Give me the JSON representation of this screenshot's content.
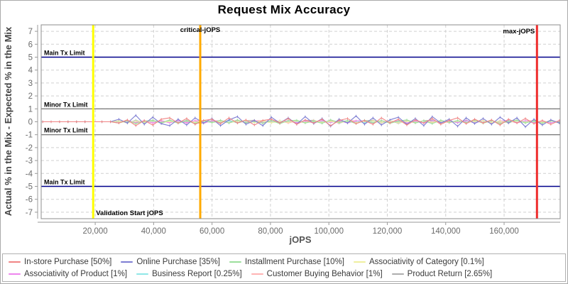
{
  "title": "Request Mix Accuracy",
  "chart_data": {
    "type": "line",
    "title": "Request Mix Accuracy",
    "xlabel": "jOPS",
    "ylabel": "Actual % in the Mix - Expected % in the Mix",
    "xlim": [
      1500,
      179200
    ],
    "ylim": [
      -7.5,
      7.5
    ],
    "x_ticks": [
      20000,
      40000,
      60000,
      80000,
      100000,
      120000,
      140000,
      160000
    ],
    "y_ticks": [
      -7,
      -6,
      -5,
      -4,
      -3,
      -2,
      -1,
      0,
      1,
      2,
      3,
      4,
      5,
      6,
      7
    ],
    "grid": "dashed",
    "legend_position": "bottom",
    "colors": {
      "grid": "#d0d0d0",
      "frame": "#8c8c8c",
      "axis": "#9a9a9a"
    },
    "limit_lines": [
      {
        "y": 5,
        "label": "Main Tx Limit",
        "color": "#00008b"
      },
      {
        "y": 1,
        "label": "Minor Tx Limit",
        "color": "#7f7f7f"
      },
      {
        "y": -1,
        "label": "Minor Tx Limit",
        "color": "#7f7f7f"
      },
      {
        "y": -5,
        "label": "Main Tx Limit",
        "color": "#00008b"
      }
    ],
    "marker_lines": [
      {
        "x": 19300,
        "label": "Validation Start jOPS",
        "color": "#ffff00",
        "label_pos": "bottom-right"
      },
      {
        "x": 55960,
        "label": "critical-jOPS",
        "color": "#ffaa00",
        "label_pos": "top-center"
      },
      {
        "x": 171250,
        "label": "max-jOPS",
        "color": "#ee2c2c",
        "label_pos": "top-left"
      }
    ],
    "x_start": 2000,
    "x_step": 2900,
    "series": [
      {
        "name": "In-store Purchase",
        "label": "In-store Purchase [50%]",
        "color": "#f08484",
        "values": [
          0,
          0,
          0,
          0,
          0,
          0,
          0,
          0,
          0,
          -0.1,
          0.15,
          -0.3,
          0.1,
          -0.25,
          0.2,
          0.3,
          -0.1,
          0.25,
          -0.2,
          0.1,
          0.2,
          -0.15,
          0.3,
          -0.1,
          0.15,
          -0.25,
          0.1,
          0.2,
          -0.1,
          0.25,
          -0.2,
          0.15,
          -0.1,
          0.2,
          -0.3,
          0.1,
          0.25,
          -0.15,
          0.1,
          -0.2,
          0.3,
          -0.1,
          0.2,
          -0.25,
          0.15,
          -0.1,
          0.25,
          -0.2,
          0.1,
          0.3,
          -0.15,
          0.2,
          -0.1,
          0.15,
          -0.25,
          0.2,
          -0.1,
          0.25,
          -0.15,
          0.1,
          -0.2,
          0.1
        ]
      },
      {
        "name": "Online Purchase",
        "label": "Online Purchase [35%]",
        "color": "#7d7dd2",
        "values": [
          0,
          0,
          0,
          0,
          0,
          0,
          0,
          0,
          0,
          0.2,
          -0.1,
          0.5,
          -0.2,
          0.35,
          -0.15,
          -0.3,
          0.2,
          -0.25,
          0.3,
          -0.1,
          0.25,
          -0.3,
          0.15,
          0.4,
          -0.2,
          0.1,
          -0.3,
          0.35,
          -0.1,
          0.3,
          -0.2,
          0.4,
          -0.15,
          0.25,
          -0.35,
          0.2,
          -0.1,
          0.45,
          -0.2,
          0.3,
          -0.25,
          0.15,
          0.35,
          -0.2,
          0.25,
          -0.3,
          0.4,
          -0.1,
          0.2,
          -0.35,
          0.3,
          -0.15,
          0.25,
          -0.2,
          0.35,
          -0.1,
          0.3,
          -0.4,
          0.2,
          -0.25,
          0.15,
          -0.1
        ]
      },
      {
        "name": "Installment Purchase",
        "label": "Installment Purchase [10%]",
        "color": "#9cde9c",
        "values": [
          0,
          0,
          0,
          0,
          0,
          0,
          0,
          0,
          0,
          -0.1,
          0.1,
          -0.15,
          0.05,
          0.12,
          -0.08,
          0.15,
          -0.12,
          0.08,
          -0.15,
          0.1,
          -0.05,
          0.12,
          -0.1,
          0.15,
          -0.08,
          0.05,
          -0.12,
          0.1,
          -0.15,
          0.08,
          0.12,
          -0.1,
          0.05,
          -0.12,
          0.15,
          -0.05,
          0.1,
          -0.15,
          0.12,
          -0.08,
          0.1,
          -0.12,
          0.05,
          0.15,
          -0.1,
          0.08,
          -0.15,
          0.12,
          -0.05,
          0.1,
          -0.08,
          0.15,
          -0.12,
          0.1,
          -0.15,
          0.05,
          0.12,
          -0.1,
          0.08,
          -0.12,
          0.1,
          -0.05
        ]
      },
      {
        "name": "Associativity of Category",
        "label": "Associativity of Category [0.1%]",
        "color": "#efef9e",
        "values": [
          0,
          0,
          0,
          0,
          0,
          0,
          0,
          0,
          0,
          0.05,
          -0.08,
          0.06,
          -0.04,
          0.08,
          -0.06,
          0.04,
          -0.08,
          0.07,
          -0.05,
          0.08,
          -0.06,
          0.05,
          -0.07,
          0.04,
          0.08,
          -0.05,
          0.06,
          -0.08,
          0.05,
          -0.04,
          0.07,
          -0.06,
          0.08,
          -0.05,
          0.04,
          -0.07,
          0.06,
          -0.08,
          0.05,
          0.07,
          -0.04,
          0.06,
          -0.08,
          0.05,
          -0.06,
          0.08,
          -0.04,
          0.07,
          -0.05,
          0.06,
          -0.08,
          0.04,
          0.08,
          -0.06,
          0.05,
          -0.07,
          0.08,
          -0.04,
          0.06,
          -0.05,
          0.07,
          -0.06
        ]
      },
      {
        "name": "Associativity of Product",
        "label": "Associativity of Product [1%]",
        "color": "#ee85ee",
        "values": [
          0,
          0,
          0,
          0,
          0,
          0,
          0,
          0,
          0,
          -0.08,
          0.1,
          -0.06,
          0.09,
          -0.1,
          0.07,
          -0.09,
          0.1,
          -0.07,
          0.08,
          -0.1,
          0.06,
          0.09,
          -0.08,
          0.1,
          -0.06,
          0.08,
          -0.1,
          0.09,
          -0.07,
          0.1,
          -0.08,
          0.06,
          -0.09,
          0.1,
          -0.06,
          0.08,
          -0.1,
          0.07,
          0.09,
          -0.1,
          0.08,
          -0.06,
          0.1,
          -0.09,
          0.07,
          -0.1,
          0.08,
          -0.07,
          0.1,
          -0.06,
          0.09,
          -0.1,
          0.08,
          -0.09,
          0.06,
          0.1,
          -0.08,
          0.09,
          -0.1,
          0.07,
          -0.09,
          0.08
        ]
      },
      {
        "name": "Business Report",
        "label": "Business Report [0.25%]",
        "color": "#8fe7e7",
        "values": [
          0,
          0,
          0,
          0,
          0,
          0,
          0,
          0,
          0,
          0.04,
          -0.06,
          0.07,
          -0.05,
          0.06,
          -0.07,
          0.05,
          -0.04,
          0.07,
          -0.06,
          0.05,
          -0.07,
          0.04,
          0.06,
          -0.05,
          0.07,
          -0.06,
          0.04,
          -0.07,
          0.05,
          0.06,
          -0.04,
          0.07,
          -0.05,
          0.04,
          -0.06,
          0.07,
          -0.04,
          0.05,
          -0.07,
          0.06,
          -0.05,
          0.07,
          -0.06,
          0.04,
          0.05,
          -0.07,
          0.06,
          -0.04,
          0.07,
          -0.05,
          0.06,
          -0.07,
          0.05,
          -0.06,
          0.04,
          0.07,
          -0.05,
          0.06,
          -0.04,
          0.05,
          -0.06,
          0.04
        ]
      },
      {
        "name": "Customer Buying Behavior",
        "label": "Customer Buying Behavior [1%]",
        "color": "#ffb3b3",
        "values": [
          0,
          0,
          0,
          0,
          0,
          0,
          0,
          0,
          0,
          -0.09,
          0.08,
          -0.1,
          0.07,
          -0.08,
          0.1,
          -0.07,
          0.09,
          -0.1,
          0.08,
          0.1,
          -0.07,
          0.09,
          -0.1,
          0.08,
          -0.09,
          0.07,
          0.1,
          -0.08,
          0.09,
          -0.1,
          0.07,
          -0.09,
          0.08,
          -0.07,
          0.1,
          -0.09,
          0.07,
          0.08,
          -0.1,
          0.09,
          -0.08,
          0.1,
          -0.07,
          0.09,
          -0.1,
          0.08,
          -0.09,
          0.1,
          -0.08,
          0.07,
          -0.1,
          0.09,
          -0.07,
          0.1,
          -0.09,
          0.08,
          -0.1,
          0.07,
          0.09,
          -0.08,
          0.1,
          -0.09
        ]
      },
      {
        "name": "Product Return",
        "label": "Product Return [2.65%]",
        "color": "#adadad",
        "values": [
          0,
          0,
          0,
          0,
          0,
          0,
          0,
          0,
          0,
          0.08,
          -0.1,
          0.12,
          -0.08,
          0.1,
          -0.12,
          0.09,
          -0.1,
          0.12,
          -0.09,
          -0.12,
          0.1,
          -0.08,
          0.12,
          -0.1,
          0.08,
          0.12,
          -0.09,
          0.1,
          -0.12,
          0.08,
          -0.1,
          0.09,
          0.12,
          -0.08,
          0.1,
          -0.12,
          0.09,
          -0.1,
          0.08,
          0.12,
          -0.1,
          0.09,
          -0.12,
          0.1,
          -0.08,
          0.09,
          0.12,
          -0.1,
          0.08,
          -0.09,
          0.12,
          -0.08,
          0.1,
          -0.12,
          0.09,
          -0.1,
          0.12,
          -0.08,
          0.1,
          -0.09,
          0.08,
          -0.1
        ]
      }
    ]
  }
}
